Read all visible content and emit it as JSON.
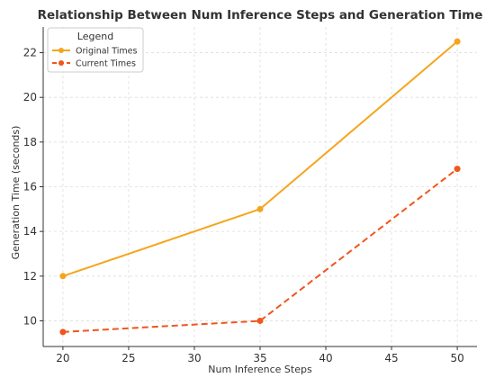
{
  "chart_data": {
    "type": "line",
    "title": "Relationship Between Num Inference Steps and Generation Time",
    "xlabel": "Num Inference Steps",
    "ylabel": "Generation Time (seconds)",
    "xlim": [
      18.5,
      51.5
    ],
    "ylim": [
      8.85,
      23.15
    ],
    "xticks": [
      20,
      25,
      30,
      35,
      40,
      45,
      50
    ],
    "yticks": [
      10,
      12,
      14,
      16,
      18,
      20,
      22
    ],
    "grid": true,
    "legend_title": "Legend",
    "legend_position": "top-left",
    "series": [
      {
        "name": "Original Times",
        "color": "#f5a51c",
        "line_style": "solid",
        "marker": "circle",
        "x": [
          20,
          35,
          50
        ],
        "y": [
          12.0,
          15.0,
          22.5
        ]
      },
      {
        "name": "Current Times",
        "color": "#f0561d",
        "line_style": "dashed",
        "marker": "circle",
        "x": [
          20,
          35,
          50
        ],
        "y": [
          9.5,
          10.0,
          16.8
        ]
      }
    ]
  }
}
